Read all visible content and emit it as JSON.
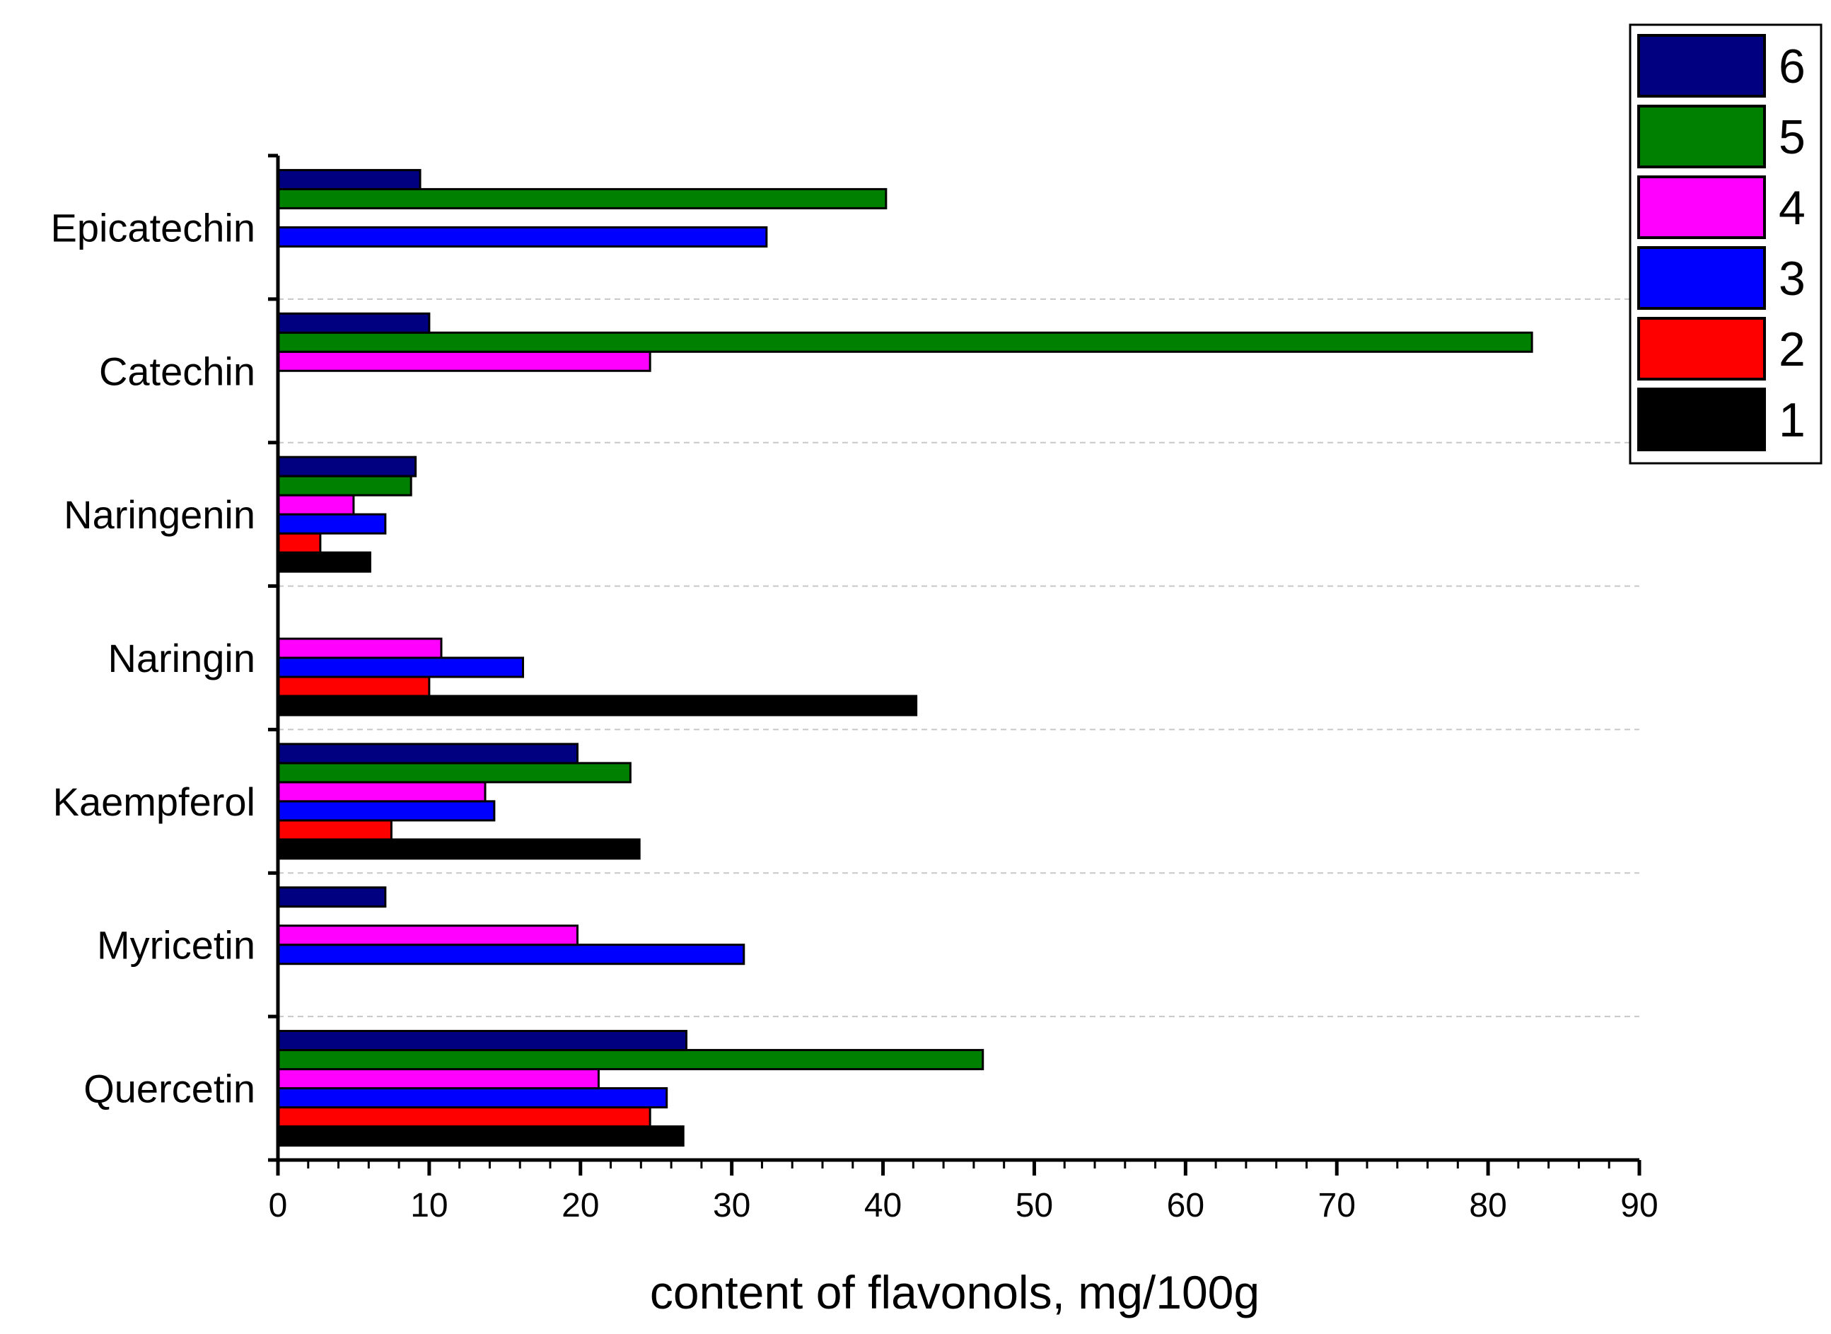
{
  "chart_data": {
    "type": "bar",
    "orientation": "horizontal",
    "title": "",
    "xlabel": "content of flavonols, mg/100g",
    "ylabel": "",
    "xlim": [
      0,
      90
    ],
    "xticks": [
      0,
      10,
      20,
      30,
      40,
      50,
      60,
      70,
      80,
      90
    ],
    "grid": "horizontal dashed between categories",
    "legend_position": "top-right",
    "categories": [
      "Quercetin",
      "Myricetin",
      "Kaempferol",
      "Naringin",
      "Naringenin",
      "Catechin",
      "Epicatechin"
    ],
    "series": [
      {
        "name": "1",
        "color": "#000000",
        "values": [
          26.8,
          null,
          23.9,
          42.2,
          6.1,
          null,
          null
        ]
      },
      {
        "name": "2",
        "color": "#ff0000",
        "values": [
          24.6,
          null,
          7.5,
          10.0,
          2.8,
          null,
          null
        ]
      },
      {
        "name": "3",
        "color": "#0000ff",
        "values": [
          25.7,
          30.8,
          14.3,
          16.2,
          7.1,
          null,
          32.3
        ]
      },
      {
        "name": "4",
        "color": "#ff00ff",
        "values": [
          21.2,
          19.8,
          13.7,
          10.8,
          5.0,
          24.6,
          null
        ]
      },
      {
        "name": "5",
        "color": "#008000",
        "values": [
          46.6,
          null,
          23.3,
          null,
          8.8,
          82.9,
          40.2
        ]
      },
      {
        "name": "6",
        "color": "#000080",
        "values": [
          27.0,
          7.1,
          19.8,
          null,
          9.1,
          10.0,
          9.4
        ]
      }
    ]
  }
}
